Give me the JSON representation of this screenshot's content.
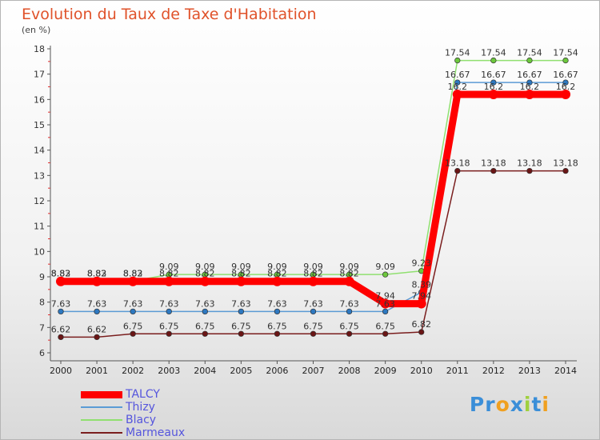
{
  "chart_data": {
    "type": "line",
    "title": "Evolution du Taux de Taxe d'Habitation",
    "subtitle": "(en %)",
    "xlabel": "",
    "ylabel": "",
    "ylim": [
      6,
      18
    ],
    "yticks": [
      "6",
      "7",
      "8",
      "9",
      "10",
      "11",
      "12",
      "13",
      "14",
      "15",
      "16",
      "17",
      "18"
    ],
    "categories": [
      "2000",
      "2001",
      "2002",
      "2003",
      "2004",
      "2005",
      "2006",
      "2007",
      "2008",
      "2009",
      "2010",
      "2011",
      "2012",
      "2013",
      "2014"
    ],
    "series": [
      {
        "name": "Marmeaux",
        "color": "#7a1e1e",
        "point_color": "#6a1515",
        "values": [
          6.62,
          6.62,
          6.75,
          6.75,
          6.75,
          6.75,
          6.75,
          6.75,
          6.75,
          6.75,
          6.82,
          13.18,
          13.18,
          13.18,
          13.18
        ]
      },
      {
        "name": "Thizy",
        "color": "#5b9bd5",
        "point_color": "#2d78c0",
        "values": [
          7.63,
          7.63,
          7.63,
          7.63,
          7.63,
          7.63,
          7.63,
          7.63,
          7.63,
          7.63,
          8.39,
          16.67,
          16.67,
          16.67,
          16.67
        ]
      },
      {
        "name": "Blacy",
        "color": "#90e070",
        "point_color": "#6cc83c",
        "values": [
          8.83,
          8.83,
          8.83,
          9.09,
          9.09,
          9.09,
          9.09,
          9.09,
          9.09,
          9.09,
          9.23,
          17.54,
          17.54,
          17.54,
          17.54
        ]
      },
      {
        "name": "TALCY",
        "color": "#ff0000",
        "point_color": "#ff0000",
        "values": [
          8.82,
          8.82,
          8.82,
          8.82,
          8.82,
          8.82,
          8.82,
          8.82,
          8.82,
          7.94,
          7.94,
          16.2,
          16.2,
          16.2,
          16.2
        ]
      }
    ],
    "data_labels": {
      "Marmeaux": [
        "6.62",
        "6.62",
        "6.75",
        "6.75",
        "6.75",
        "6.75",
        "6.75",
        "6.75",
        "6.75",
        "6.75",
        "6.82",
        "13.18",
        "13.18",
        "13.18",
        "13.18"
      ],
      "Thizy": [
        "7.63",
        "7.63",
        "7.63",
        "7.63",
        "7.63",
        "7.63",
        "7.63",
        "7.63",
        "7.63",
        "7.63",
        "8.39",
        "16.67",
        "16.67",
        "16.67",
        "16.67"
      ],
      "Blacy": [
        "8.83",
        "8.83",
        "8.83",
        "9.09",
        "9.09",
        "9.09",
        "9.09",
        "9.09",
        "9.09",
        "9.09",
        "9.23",
        "17.54",
        "17.54",
        "17.54",
        "17.54"
      ],
      "TALCY": [
        "8.82",
        "8.82",
        "8.82",
        "8.82",
        "8.82",
        "8.82",
        "8.82",
        "8.82",
        "8.82",
        "7.94",
        "7.94",
        "16.2",
        "16.2",
        "16.2",
        "16.2"
      ]
    },
    "grid": false,
    "legend_position": "bottom-left"
  },
  "legend": {
    "items": [
      {
        "label": "TALCY",
        "color": "#ff0000"
      },
      {
        "label": "Thizy",
        "color": "#5b9bd5"
      },
      {
        "label": "Blacy",
        "color": "#90e070"
      },
      {
        "label": "Marmeaux",
        "color": "#7a1e1e"
      }
    ]
  },
  "logo": {
    "text": "Proxiti",
    "colors": {
      "primary": "#3a8ed8",
      "secondary": "#f0a020",
      "accent": "#a0d040"
    }
  }
}
